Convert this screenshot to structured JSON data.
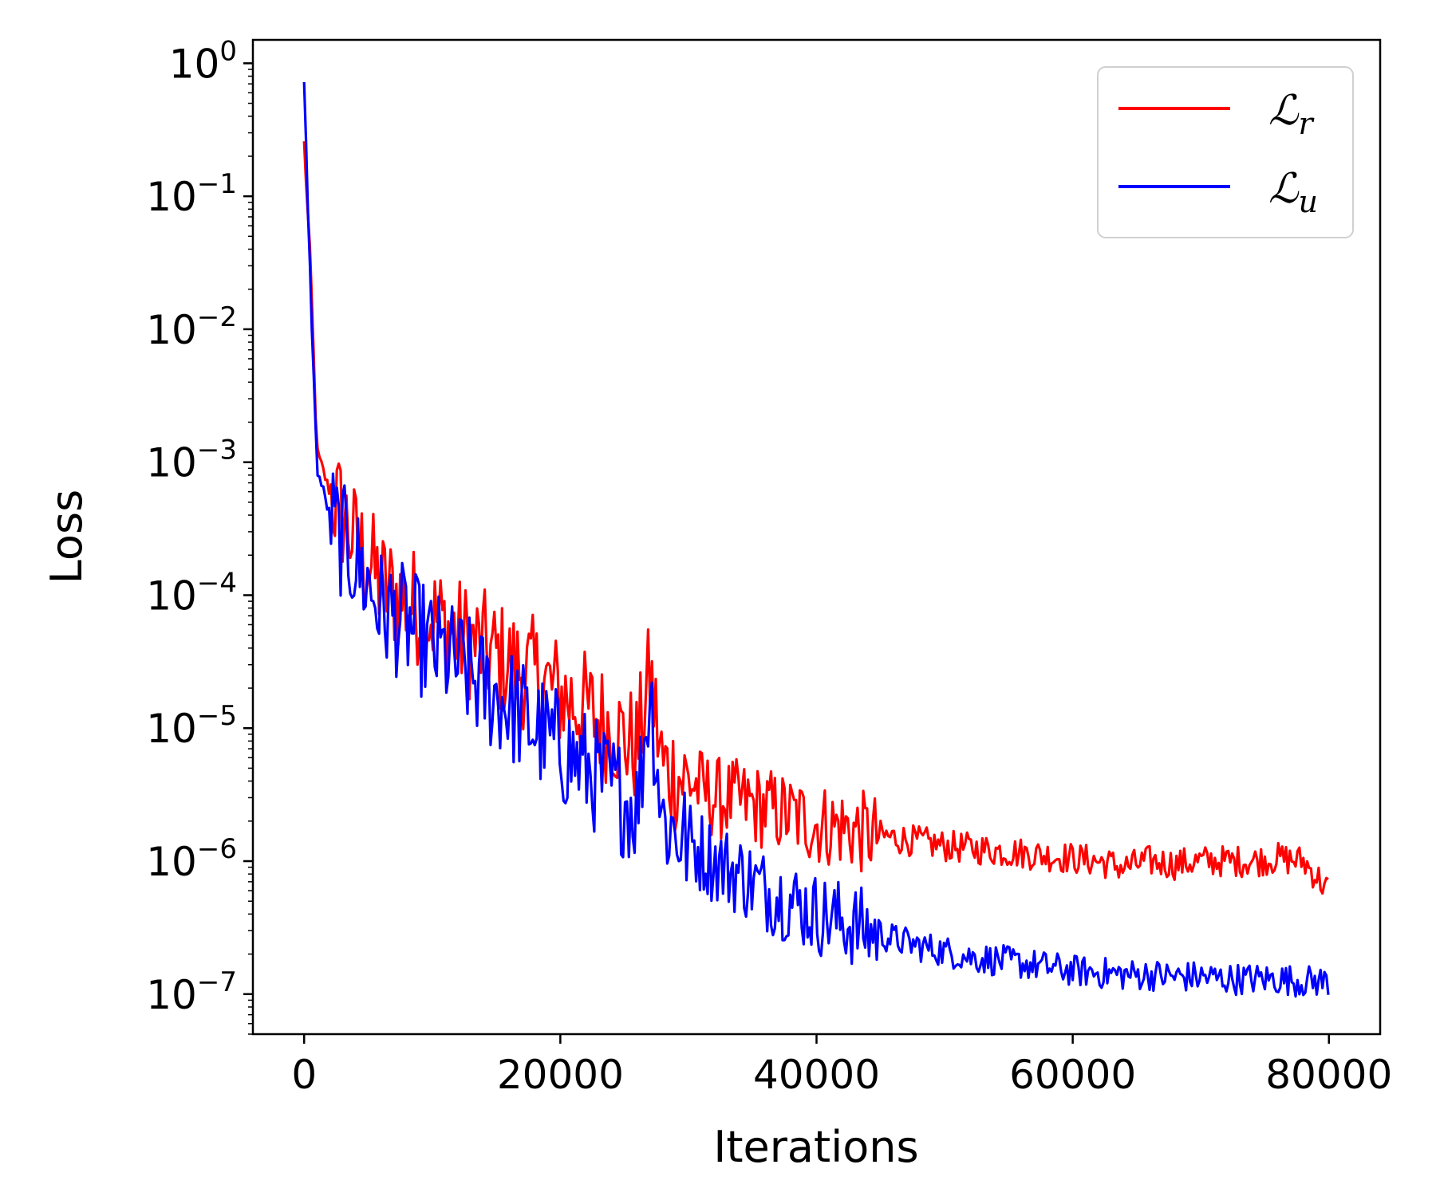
{
  "chart_data": {
    "type": "line",
    "title": "",
    "xlabel": "Iterations",
    "ylabel": "Loss",
    "xlim": [
      -4000,
      84000
    ],
    "ylim": [
      5e-08,
      1.5
    ],
    "yscale": "log",
    "grid": false,
    "legend_position": "top-right",
    "x_ticks": [
      {
        "value": 0,
        "label": "0"
      },
      {
        "value": 20000,
        "label": "20000"
      },
      {
        "value": 40000,
        "label": "40000"
      },
      {
        "value": 60000,
        "label": "60000"
      },
      {
        "value": 80000,
        "label": "80000"
      }
    ],
    "y_ticks": [
      {
        "value": 1,
        "base": "10",
        "exp": "0"
      },
      {
        "value": 0.1,
        "base": "10",
        "exp": "−1"
      },
      {
        "value": 0.01,
        "base": "10",
        "exp": "−2"
      },
      {
        "value": 0.001,
        "base": "10",
        "exp": "−3"
      },
      {
        "value": 0.0001,
        "base": "10",
        "exp": "−4"
      },
      {
        "value": 1e-05,
        "base": "10",
        "exp": "−5"
      },
      {
        "value": 1e-06,
        "base": "10",
        "exp": "−6"
      },
      {
        "value": 1e-07,
        "base": "10",
        "exp": "−7"
      }
    ],
    "series": [
      {
        "name_main": "ℒ",
        "name_sub": "r",
        "color": "#ff0000",
        "x": [
          0,
          500,
          1000,
          2000,
          3000,
          4000,
          5000,
          6000,
          8000,
          10000,
          12000,
          14000,
          16000,
          18000,
          20000,
          22000,
          24000,
          26000,
          27000,
          28000,
          30000,
          32000,
          34000,
          36000,
          38000,
          40000,
          42000,
          44000,
          46000,
          48000,
          50000,
          52000,
          54000,
          56000,
          58000,
          60000,
          62000,
          64000,
          66000,
          68000,
          70000,
          72000,
          74000,
          76000,
          78000,
          80000
        ],
        "y": [
          0.25,
          0.03,
          0.0012,
          0.0006,
          0.0004,
          0.00025,
          0.00018,
          0.00012,
          9e-05,
          7e-05,
          5e-05,
          4e-05,
          3e-05,
          2.5e-05,
          1.8e-05,
          1.4e-05,
          1e-05,
          7e-06,
          2.5e-05,
          5e-06,
          4e-06,
          3e-06,
          2.8e-06,
          2.5e-06,
          2.2e-06,
          1.9e-06,
          1.8e-06,
          1.6e-06,
          1.5e-06,
          1.4e-06,
          1.3e-06,
          1.25e-06,
          1.2e-06,
          1.15e-06,
          1.1e-06,
          1.05e-06,
          1e-06,
          9e-07,
          1e-06,
          9.5e-07,
          1e-06,
          1e-06,
          1e-06,
          1.05e-06,
          1e-06,
          6e-07
        ]
      },
      {
        "name_main": "ℒ",
        "name_sub": "u",
        "color": "#0000ff",
        "x": [
          0,
          500,
          1000,
          2000,
          3000,
          4000,
          5000,
          6000,
          8000,
          10000,
          12000,
          14000,
          16000,
          18000,
          20000,
          22000,
          24000,
          26000,
          27000,
          28000,
          30000,
          32000,
          34000,
          36000,
          38000,
          40000,
          42000,
          44000,
          46000,
          48000,
          50000,
          52000,
          54000,
          56000,
          58000,
          60000,
          62000,
          64000,
          66000,
          68000,
          70000,
          72000,
          74000,
          76000,
          78000,
          80000
        ],
        "y": [
          0.7,
          0.02,
          0.0009,
          0.0004,
          0.00025,
          0.00018,
          0.00012,
          8e-05,
          6e-05,
          4e-05,
          3e-05,
          2e-05,
          1.5e-05,
          1e-05,
          7e-06,
          5e-06,
          3.5e-06,
          2.5e-06,
          2e-05,
          2e-06,
          1.4e-06,
          1e-06,
          8e-07,
          6e-07,
          5e-07,
          4e-07,
          3.5e-07,
          3e-07,
          2.6e-07,
          2.3e-07,
          2.1e-07,
          1.9e-07,
          1.8e-07,
          1.7e-07,
          1.6e-07,
          1.5e-07,
          1.45e-07,
          1.4e-07,
          1.4e-07,
          1.35e-07,
          1.35e-07,
          1.3e-07,
          1.3e-07,
          1.3e-07,
          1.25e-07,
          1.25e-07
        ]
      }
    ]
  }
}
